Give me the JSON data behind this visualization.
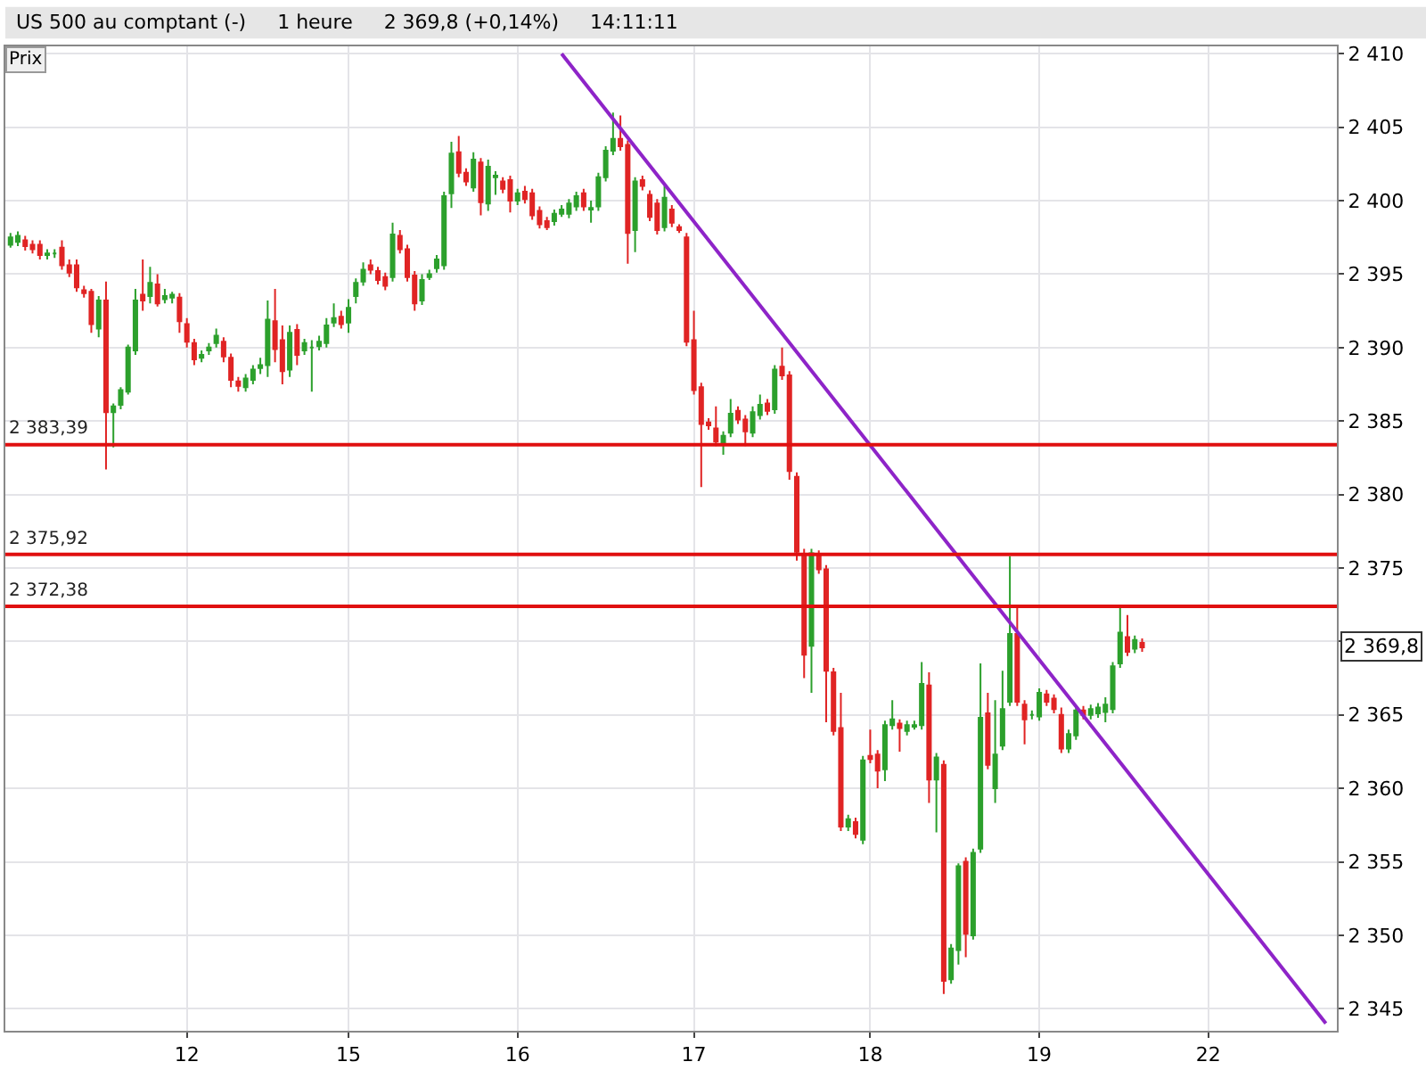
{
  "chart_data": {
    "type": "candlestick",
    "title": "US 500 au comptant (-)     1 heure     2 369,8 (+0,14%)     14:11:11",
    "ylabel": "Prix",
    "categories": [
      null,
      null,
      null,
      null,
      null,
      null,
      null,
      null,
      null,
      null,
      null,
      null,
      null,
      null,
      null,
      null,
      null,
      null,
      null,
      null,
      null,
      null,
      null,
      null,
      "12",
      null,
      null,
      null,
      null,
      null,
      null,
      null,
      null,
      null,
      null,
      null,
      null,
      null,
      null,
      null,
      null,
      null,
      null,
      null,
      null,
      null,
      "15",
      null,
      null,
      null,
      null,
      null,
      null,
      null,
      null,
      null,
      null,
      null,
      null,
      null,
      null,
      null,
      null,
      null,
      null,
      null,
      null,
      null,
      null,
      "16",
      null,
      null,
      null,
      null,
      null,
      null,
      null,
      null,
      null,
      null,
      null,
      null,
      null,
      null,
      null,
      null,
      null,
      null,
      null,
      null,
      null,
      null,
      null,
      "17",
      null,
      null,
      null,
      null,
      null,
      null,
      null,
      null,
      null,
      null,
      null,
      null,
      null,
      null,
      null,
      null,
      null,
      null,
      null,
      null,
      null,
      null,
      null,
      "18",
      null,
      null,
      null,
      null,
      null,
      null,
      null,
      null,
      null,
      null,
      null,
      null,
      null,
      null,
      null,
      null,
      null,
      null,
      null,
      null,
      null,
      null,
      "19",
      null,
      null,
      null,
      null,
      null,
      null,
      null,
      null,
      null,
      null,
      null,
      null,
      null,
      null,
      null,
      null,
      null,
      null,
      null,
      null,
      null,
      null,
      "22",
      null,
      null,
      null,
      null,
      null,
      null,
      null,
      null,
      null,
      null,
      null,
      null,
      null,
      null,
      null,
      null,
      null
    ],
    "ohlc": [
      [
        2397.0,
        2397.8,
        2396.8,
        2397.5
      ],
      [
        2397.2,
        2397.9,
        2396.9,
        2397.6
      ],
      [
        2397.3,
        2397.6,
        2396.6,
        2396.9
      ],
      [
        2397.0,
        2397.3,
        2396.4,
        2396.7
      ],
      [
        2397.0,
        2397.3,
        2396.0,
        2396.3
      ],
      [
        2396.3,
        2396.7,
        2396.0,
        2396.4
      ],
      [
        2396.4,
        2396.7,
        2396.1,
        2396.4
      ],
      [
        2396.8,
        2397.3,
        2395.3,
        2395.6
      ],
      [
        2395.6,
        2396.0,
        2394.8,
        2395.1
      ],
      [
        2395.6,
        2396.0,
        2393.8,
        2394.1
      ],
      [
        2393.9,
        2394.2,
        2393.4,
        2393.7
      ],
      [
        2393.8,
        2394.0,
        2391.0,
        2391.6
      ],
      [
        2391.3,
        2393.5,
        2390.7,
        2393.2
      ],
      [
        2393.2,
        2394.5,
        2381.7,
        2385.6
      ],
      [
        2385.6,
        2386.2,
        2383.2,
        2386.0
      ],
      [
        2386.1,
        2387.3,
        2385.8,
        2387.1
      ],
      [
        2387.0,
        2390.2,
        2386.8,
        2390.0
      ],
      [
        2389.8,
        2394.0,
        2389.5,
        2393.2
      ],
      [
        2393.6,
        2396.0,
        2392.5,
        2393.2
      ],
      [
        2393.5,
        2395.5,
        2393.0,
        2394.4
      ],
      [
        2394.3,
        2395.0,
        2392.8,
        2393.0
      ],
      [
        2393.3,
        2394.0,
        2393.0,
        2393.5
      ],
      [
        2393.4,
        2393.8,
        2393.0,
        2393.6
      ],
      [
        2393.4,
        2393.7,
        2391.0,
        2391.8
      ],
      [
        2391.6,
        2392.0,
        2390.0,
        2390.4
      ],
      [
        2390.3,
        2390.6,
        2388.8,
        2389.2
      ],
      [
        2389.3,
        2389.8,
        2389.0,
        2389.5
      ],
      [
        2389.8,
        2390.3,
        2389.5,
        2390.0
      ],
      [
        2390.3,
        2391.3,
        2390.0,
        2390.8
      ],
      [
        2390.4,
        2390.7,
        2389.0,
        2389.4
      ],
      [
        2389.3,
        2389.6,
        2387.3,
        2387.8
      ],
      [
        2387.7,
        2388.0,
        2387.0,
        2387.4
      ],
      [
        2387.3,
        2388.2,
        2387.0,
        2387.9
      ],
      [
        2387.8,
        2388.8,
        2387.5,
        2388.5
      ],
      [
        2388.6,
        2389.3,
        2388.2,
        2388.8
      ],
      [
        2388.8,
        2393.2,
        2388.0,
        2391.9
      ],
      [
        2391.8,
        2394.0,
        2389.0,
        2389.9
      ],
      [
        2390.5,
        2391.5,
        2387.5,
        2388.4
      ],
      [
        2388.5,
        2391.5,
        2388.0,
        2391.0
      ],
      [
        2391.2,
        2391.6,
        2388.8,
        2389.5
      ],
      [
        2389.8,
        2390.6,
        2389.5,
        2390.3
      ],
      [
        2390.0,
        2390.5,
        2387.0,
        2390.0
      ],
      [
        2390.1,
        2390.8,
        2389.8,
        2390.4
      ],
      [
        2390.3,
        2392.0,
        2390.0,
        2391.5
      ],
      [
        2391.7,
        2393.0,
        2391.4,
        2392.0
      ],
      [
        2392.1,
        2392.5,
        2391.3,
        2391.6
      ],
      [
        2391.7,
        2393.3,
        2391.0,
        2392.7
      ],
      [
        2393.5,
        2394.7,
        2393.0,
        2394.4
      ],
      [
        2394.5,
        2395.8,
        2394.2,
        2395.3
      ],
      [
        2395.6,
        2396.0,
        2395.0,
        2395.3
      ],
      [
        2395.2,
        2395.5,
        2394.3,
        2394.6
      ],
      [
        2394.8,
        2395.1,
        2393.9,
        2394.2
      ],
      [
        2394.8,
        2398.5,
        2394.5,
        2397.7
      ],
      [
        2397.6,
        2398.0,
        2396.4,
        2396.7
      ],
      [
        2396.7,
        2397.0,
        2394.5,
        2394.8
      ],
      [
        2394.9,
        2395.2,
        2392.5,
        2393.0
      ],
      [
        2393.2,
        2395.0,
        2392.9,
        2394.6
      ],
      [
        2394.8,
        2395.3,
        2394.6,
        2395.0
      ],
      [
        2395.4,
        2396.3,
        2395.1,
        2396.0
      ],
      [
        2395.6,
        2400.6,
        2395.3,
        2400.3
      ],
      [
        2400.5,
        2404.0,
        2399.5,
        2403.2
      ],
      [
        2403.3,
        2404.4,
        2401.6,
        2401.9
      ],
      [
        2401.9,
        2402.2,
        2401.0,
        2401.3
      ],
      [
        2400.9,
        2403.3,
        2400.6,
        2402.8
      ],
      [
        2402.6,
        2402.9,
        2399.0,
        2399.9
      ],
      [
        2399.8,
        2402.8,
        2399.3,
        2402.3
      ],
      [
        2401.6,
        2402.0,
        2400.4,
        2401.7
      ],
      [
        2401.3,
        2401.6,
        2400.5,
        2400.8
      ],
      [
        2401.4,
        2401.7,
        2399.2,
        2400.0
      ],
      [
        2400.0,
        2400.8,
        2399.7,
        2400.5
      ],
      [
        2400.6,
        2401.0,
        2399.8,
        2400.1
      ],
      [
        2400.5,
        2400.8,
        2398.7,
        2399.0
      ],
      [
        2399.3,
        2399.6,
        2398.1,
        2398.4
      ],
      [
        2398.6,
        2398.9,
        2398.0,
        2398.2
      ],
      [
        2398.6,
        2399.4,
        2398.3,
        2399.1
      ],
      [
        2399.1,
        2399.7,
        2398.9,
        2399.4
      ],
      [
        2399.1,
        2400.1,
        2398.8,
        2399.8
      ],
      [
        2399.6,
        2400.6,
        2399.3,
        2400.3
      ],
      [
        2400.5,
        2400.8,
        2399.3,
        2399.6
      ],
      [
        2399.4,
        2400.0,
        2398.5,
        2399.5
      ],
      [
        2399.6,
        2401.9,
        2399.3,
        2401.6
      ],
      [
        2401.6,
        2403.7,
        2401.3,
        2403.4
      ],
      [
        2403.4,
        2406.0,
        2403.1,
        2404.2
      ],
      [
        2404.2,
        2405.8,
        2403.4,
        2403.7
      ],
      [
        2403.8,
        2404.1,
        2395.7,
        2397.8
      ],
      [
        2398.0,
        2401.6,
        2396.5,
        2401.3
      ],
      [
        2401.4,
        2401.7,
        2400.7,
        2401.0
      ],
      [
        2400.4,
        2400.7,
        2398.6,
        2398.9
      ],
      [
        2399.8,
        2400.1,
        2397.7,
        2398.0
      ],
      [
        2398.2,
        2401.0,
        2397.9,
        2400.2
      ],
      [
        2399.4,
        2399.7,
        2398.2,
        2398.5
      ],
      [
        2398.2,
        2398.4,
        2397.8,
        2398.0
      ],
      [
        2397.5,
        2397.8,
        2390.1,
        2390.4
      ],
      [
        2390.5,
        2392.5,
        2386.8,
        2387.1
      ],
      [
        2387.3,
        2387.6,
        2380.5,
        2384.8
      ],
      [
        2384.9,
        2385.2,
        2384.4,
        2384.7
      ],
      [
        2384.5,
        2386.0,
        2383.3,
        2383.6
      ],
      [
        2383.4,
        2384.3,
        2382.7,
        2384.0
      ],
      [
        2384.2,
        2386.5,
        2383.9,
        2385.5
      ],
      [
        2385.7,
        2386.0,
        2384.8,
        2385.1
      ],
      [
        2385.1,
        2385.4,
        2383.3,
        2384.3
      ],
      [
        2384.2,
        2386.0,
        2383.9,
        2385.6
      ],
      [
        2385.4,
        2386.8,
        2385.1,
        2386.1
      ],
      [
        2386.2,
        2386.5,
        2385.4,
        2385.7
      ],
      [
        2385.8,
        2388.8,
        2385.5,
        2388.5
      ],
      [
        2388.7,
        2390.0,
        2387.8,
        2388.1
      ],
      [
        2388.1,
        2388.4,
        2381.0,
        2381.6
      ],
      [
        2381.2,
        2381.5,
        2375.5,
        2376.1
      ],
      [
        2375.8,
        2376.3,
        2367.5,
        2369.1
      ],
      [
        2369.7,
        2376.3,
        2366.5,
        2376.0
      ],
      [
        2375.9,
        2376.2,
        2374.6,
        2374.9
      ],
      [
        2374.9,
        2375.2,
        2364.5,
        2368.0
      ],
      [
        2367.9,
        2368.2,
        2363.6,
        2363.9
      ],
      [
        2364.1,
        2366.5,
        2357.1,
        2357.4
      ],
      [
        2357.4,
        2358.2,
        2357.1,
        2357.9
      ],
      [
        2357.7,
        2358.0,
        2356.6,
        2356.9
      ],
      [
        2356.5,
        2362.2,
        2356.2,
        2361.9
      ],
      [
        2362.2,
        2364.0,
        2361.7,
        2362.0
      ],
      [
        2362.3,
        2362.6,
        2360.0,
        2361.2
      ],
      [
        2361.3,
        2364.6,
        2360.5,
        2364.3
      ],
      [
        2364.3,
        2366.0,
        2364.0,
        2364.7
      ],
      [
        2364.4,
        2364.7,
        2362.5,
        2364.1
      ],
      [
        2363.9,
        2364.6,
        2363.6,
        2364.3
      ],
      [
        2364.2,
        2364.6,
        2364.0,
        2364.3
      ],
      [
        2364.3,
        2368.6,
        2364.0,
        2367.1
      ],
      [
        2367.0,
        2367.9,
        2359.0,
        2360.6
      ],
      [
        2360.6,
        2362.4,
        2357.0,
        2362.1
      ],
      [
        2361.6,
        2361.9,
        2346.0,
        2346.9
      ],
      [
        2347.0,
        2349.4,
        2346.7,
        2349.1
      ],
      [
        2349.0,
        2354.9,
        2348.0,
        2354.7
      ],
      [
        2355.0,
        2355.3,
        2348.5,
        2350.1
      ],
      [
        2350.0,
        2355.9,
        2349.7,
        2355.6
      ],
      [
        2355.9,
        2368.5,
        2355.6,
        2364.8
      ],
      [
        2365.1,
        2366.5,
        2361.3,
        2361.6
      ],
      [
        2360.0,
        2366.0,
        2359.0,
        2362.3
      ],
      [
        2362.9,
        2368.0,
        2362.6,
        2365.4
      ],
      [
        2365.9,
        2375.8,
        2365.6,
        2370.5
      ],
      [
        2370.5,
        2372.5,
        2365.6,
        2365.9
      ],
      [
        2365.7,
        2366.0,
        2363.0,
        2364.7
      ],
      [
        2365.0,
        2365.3,
        2364.7,
        2365.0
      ],
      [
        2364.9,
        2366.8,
        2364.6,
        2366.5
      ],
      [
        2366.4,
        2366.7,
        2365.6,
        2365.9
      ],
      [
        2366.1,
        2366.4,
        2365.1,
        2365.4
      ],
      [
        2365.0,
        2365.5,
        2362.4,
        2362.7
      ],
      [
        2362.7,
        2364.0,
        2362.4,
        2363.7
      ],
      [
        2363.6,
        2365.6,
        2363.3,
        2365.3
      ],
      [
        2365.3,
        2365.6,
        2364.7,
        2365.0
      ],
      [
        2365.0,
        2365.7,
        2364.7,
        2365.4
      ],
      [
        2365.1,
        2365.8,
        2364.8,
        2365.5
      ],
      [
        2365.2,
        2366.2,
        2364.5,
        2365.7
      ],
      [
        2365.4,
        2368.6,
        2365.1,
        2368.3
      ],
      [
        2368.5,
        2372.5,
        2368.2,
        2370.6
      ],
      [
        2370.3,
        2371.8,
        2369.0,
        2369.3
      ],
      [
        2369.5,
        2370.4,
        2369.2,
        2370.1
      ],
      [
        2369.9,
        2370.2,
        2369.3,
        2369.6
      ],
      null,
      null,
      null,
      null,
      null,
      null,
      null,
      null,
      null,
      null,
      null,
      null,
      null,
      null,
      null,
      null,
      null,
      null,
      null,
      null,
      null,
      null,
      null,
      null,
      null,
      null
    ],
    "colors": [
      "#2ca02c",
      "#2ca02c",
      "#e02424",
      "#e02424",
      "#e02424",
      "#2ca02c",
      "#2ca02c",
      "#e02424",
      "#e02424",
      "#e02424",
      "#e02424",
      "#e02424",
      "#2ca02c",
      "#e02424",
      "#2ca02c",
      "#2ca02c",
      "#2ca02c",
      "#2ca02c",
      "#e02424",
      "#2ca02c",
      "#e02424",
      "#2ca02c",
      "#2ca02c",
      "#e02424",
      "#e02424",
      "#e02424",
      "#2ca02c",
      "#2ca02c",
      "#2ca02c",
      "#e02424",
      "#e02424",
      "#e02424",
      "#2ca02c",
      "#2ca02c",
      "#2ca02c",
      "#2ca02c",
      "#e02424",
      "#e02424",
      "#2ca02c",
      "#e02424",
      "#2ca02c",
      "#2ca02c",
      "#2ca02c",
      "#2ca02c",
      "#2ca02c",
      "#e02424",
      "#2ca02c",
      "#2ca02c",
      "#2ca02c",
      "#e02424",
      "#e02424",
      "#e02424",
      "#2ca02c",
      "#e02424",
      "#e02424",
      "#e02424",
      "#2ca02c",
      "#2ca02c",
      "#2ca02c",
      "#2ca02c",
      "#2ca02c",
      "#e02424",
      "#e02424",
      "#2ca02c",
      "#e02424",
      "#2ca02c",
      "#2ca02c",
      "#e02424",
      "#e02424",
      "#2ca02c",
      "#e02424",
      "#e02424",
      "#e02424",
      "#e02424",
      "#2ca02c",
      "#2ca02c",
      "#2ca02c",
      "#2ca02c",
      "#e02424",
      "#2ca02c",
      "#2ca02c",
      "#2ca02c",
      "#2ca02c",
      "#e02424",
      "#e02424",
      "#2ca02c",
      "#e02424",
      "#e02424",
      "#e02424",
      "#2ca02c",
      "#e02424",
      "#e02424",
      "#e02424",
      "#e02424",
      "#e02424",
      "#e02424",
      "#e02424",
      "#2ca02c",
      "#2ca02c",
      "#e02424",
      "#e02424",
      "#2ca02c",
      "#2ca02c",
      "#e02424",
      "#2ca02c",
      "#e02424",
      "#e02424",
      "#e02424",
      "#e02424",
      "#2ca02c",
      "#e02424",
      "#e02424",
      "#e02424",
      "#e02424",
      "#2ca02c",
      "#e02424",
      "#2ca02c",
      "#e02424",
      "#e02424",
      "#2ca02c",
      "#2ca02c",
      "#e02424",
      "#2ca02c",
      "#2ca02c",
      "#2ca02c",
      "#e02424",
      "#2ca02c",
      "#e02424",
      "#2ca02c",
      "#2ca02c",
      "#e02424",
      "#2ca02c",
      "#2ca02c",
      "#e02424",
      "#2ca02c",
      "#2ca02c",
      "#2ca02c",
      "#e02424",
      "#e02424",
      "#2ca02c",
      "#2ca02c",
      "#e02424",
      "#e02424",
      "#e02424",
      "#2ca02c",
      "#2ca02c",
      "#e02424",
      "#2ca02c",
      "#2ca02c",
      "#2ca02c",
      "#2ca02c",
      "#2ca02c",
      "#e02424",
      "#2ca02c",
      "#e02424",
      null,
      null,
      null,
      null,
      null,
      null,
      null,
      null,
      null,
      null,
      null,
      null,
      null,
      null,
      null,
      null,
      null,
      null,
      null,
      null,
      null,
      null,
      null,
      null,
      null,
      null
    ],
    "series": [
      {
        "type": "line",
        "color": "#8e24c8",
        "values": [
          null,
          null,
          null,
          null,
          null,
          null,
          null,
          null,
          null,
          null,
          null,
          null,
          null,
          null,
          null,
          null,
          null,
          null,
          null,
          null,
          null,
          null,
          null,
          null,
          null,
          null,
          null,
          null,
          null,
          null,
          null,
          null,
          null,
          null,
          null,
          null,
          null,
          null,
          null,
          null,
          null,
          null,
          null,
          null,
          null,
          null,
          null,
          null,
          null,
          null,
          null,
          null,
          null,
          null,
          null,
          null,
          null,
          null,
          null,
          null,
          null,
          null,
          null,
          null,
          null,
          null,
          null,
          null,
          null,
          null,
          null,
          null,
          null,
          null,
          null,
          2410,
          null,
          null,
          null,
          null,
          null,
          null,
          null,
          null,
          null,
          null,
          null,
          null,
          null,
          null,
          null,
          null,
          null,
          null,
          null,
          null,
          null,
          null,
          null,
          null,
          null,
          null,
          null,
          null,
          null,
          null,
          null,
          null,
          null,
          null,
          null,
          null,
          null,
          null,
          null,
          null,
          null,
          null,
          null,
          null,
          null,
          null,
          null,
          null,
          null,
          null,
          null,
          null,
          null,
          null,
          null,
          null,
          null,
          null,
          null,
          null,
          null,
          null,
          null,
          null,
          null,
          null,
          null,
          null,
          null,
          null,
          null,
          null,
          null,
          null,
          null,
          null,
          null,
          null,
          null,
          null,
          null,
          null,
          null,
          null,
          null,
          null,
          null,
          null,
          null,
          null,
          null,
          null,
          null,
          null,
          null,
          null,
          null,
          null,
          null,
          null,
          null,
          null,
          null,
          2344,
          null
        ]
      }
    ],
    "ylim": [
      2343.5,
      2410.5
    ],
    "yticks": [
      {
        "value": 2345,
        "label": "2 345"
      },
      {
        "value": 2350,
        "label": "2 350"
      },
      {
        "value": 2355,
        "label": "2 355"
      },
      {
        "value": 2360,
        "label": "2 360"
      },
      {
        "value": 2365,
        "label": "2 365"
      },
      {
        "value": 2370,
        "label": null
      },
      {
        "value": 2375,
        "label": "2 375"
      },
      {
        "value": 2380,
        "label": "2 380"
      },
      {
        "value": 2385,
        "label": "2 385"
      },
      {
        "value": 2390,
        "label": "2 390"
      },
      {
        "value": 2395,
        "label": "2 395"
      },
      {
        "value": 2400,
        "label": "2 400"
      },
      {
        "value": 2405,
        "label": "2 405"
      },
      {
        "value": 2410,
        "label": "2 410"
      }
    ],
    "ref_lines": [
      {
        "axis": "y",
        "value": 2383.39,
        "label": "2 383,39",
        "color": "#e01010"
      },
      {
        "axis": "y",
        "value": 2375.92,
        "label": "2 375,92",
        "color": "#e01010"
      },
      {
        "axis": "y",
        "value": 2372.38,
        "label": "2 372,38",
        "color": "#e01010"
      }
    ],
    "annotations": [
      "2 369,8"
    ],
    "grid": true
  }
}
